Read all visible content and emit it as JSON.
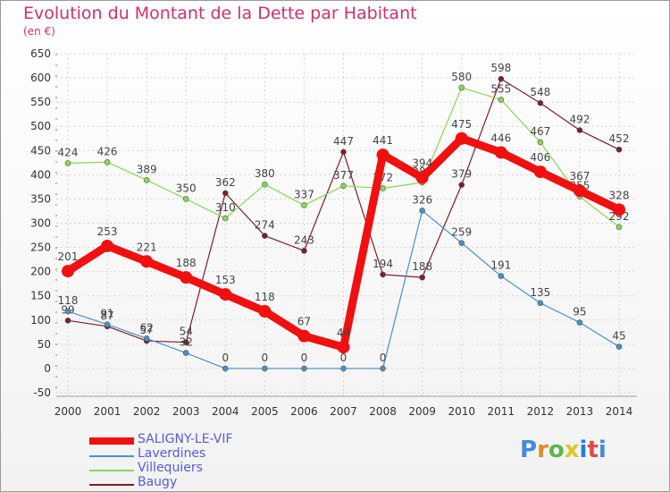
{
  "title": "Evolution du Montant de la Dette par Habitant",
  "subtitle": "(en €)",
  "logo": {
    "text": "Proxiti",
    "colors": [
      "#3d8de0",
      "#e08a2a",
      "#5ab84c",
      "#e0c52a",
      "#2a7ae0",
      "#e04a4a",
      "#3d8de0"
    ]
  },
  "chart_data": {
    "type": "line",
    "x": [
      2000,
      2001,
      2002,
      2003,
      2004,
      2005,
      2006,
      2007,
      2008,
      2009,
      2010,
      2011,
      2012,
      2013,
      2014
    ],
    "ylim": [
      -50,
      650
    ],
    "yticks": [
      -50,
      0,
      50,
      100,
      150,
      200,
      250,
      300,
      350,
      400,
      450,
      500,
      550,
      600,
      650
    ],
    "grid": true,
    "legend_position": "bottom-left",
    "series": [
      {
        "name": "Baugy",
        "color": "#7a1f2b",
        "width": 1.2,
        "marker": 3,
        "values": [
          99,
          87,
          57,
          54,
          362,
          274,
          243,
          447,
          194,
          188,
          379,
          598,
          548,
          492,
          452
        ],
        "labels": [
          "99",
          "87",
          "57",
          "54",
          "362",
          "274",
          "243",
          "447",
          "194",
          "188",
          "379",
          "598",
          "548",
          "492",
          "452"
        ]
      },
      {
        "name": "Villequiers",
        "color": "#88d858",
        "width": 1.2,
        "marker": 3,
        "values": [
          424,
          426,
          389,
          350,
          310,
          380,
          337,
          377,
          372,
          384,
          580,
          555,
          467,
          355,
          292
        ],
        "labels": [
          "424",
          "426",
          "389",
          "350",
          "310",
          "380",
          "337",
          "377",
          "372",
          "384",
          "580",
          "555",
          "467",
          "355",
          "292"
        ]
      },
      {
        "name": "Laverdines",
        "color": "#4a90c8",
        "width": 1.2,
        "marker": 3,
        "values": [
          118,
          91,
          62,
          32,
          0,
          0,
          0,
          0,
          0,
          326,
          259,
          191,
          135,
          95,
          45
        ],
        "labels": [
          "118",
          "91",
          "62",
          "32",
          "0",
          "0",
          "0",
          "0",
          "0",
          "326",
          "259",
          "191",
          "135",
          "95",
          "45"
        ]
      },
      {
        "name": "SALIGNY-LE-VIF",
        "color": "#f01010",
        "width": 9,
        "marker": 7,
        "values": [
          201,
          253,
          221,
          188,
          153,
          118,
          67,
          44,
          441,
          394,
          475,
          446,
          406,
          367,
          328
        ],
        "labels": [
          "201",
          "253",
          "221",
          "188",
          "153",
          "118",
          "67",
          "44",
          "441",
          "394",
          "475",
          "446",
          "406",
          "367",
          "328"
        ]
      }
    ]
  },
  "legend": [
    {
      "label": "SALIGNY-LE-VIF",
      "color": "#f01010",
      "thick": true
    },
    {
      "label": "Laverdines",
      "color": "#4a90c8",
      "thick": false
    },
    {
      "label": "Villequiers",
      "color": "#88d858",
      "thick": false
    },
    {
      "label": "Baugy",
      "color": "#7a1f2b",
      "thick": false
    }
  ]
}
